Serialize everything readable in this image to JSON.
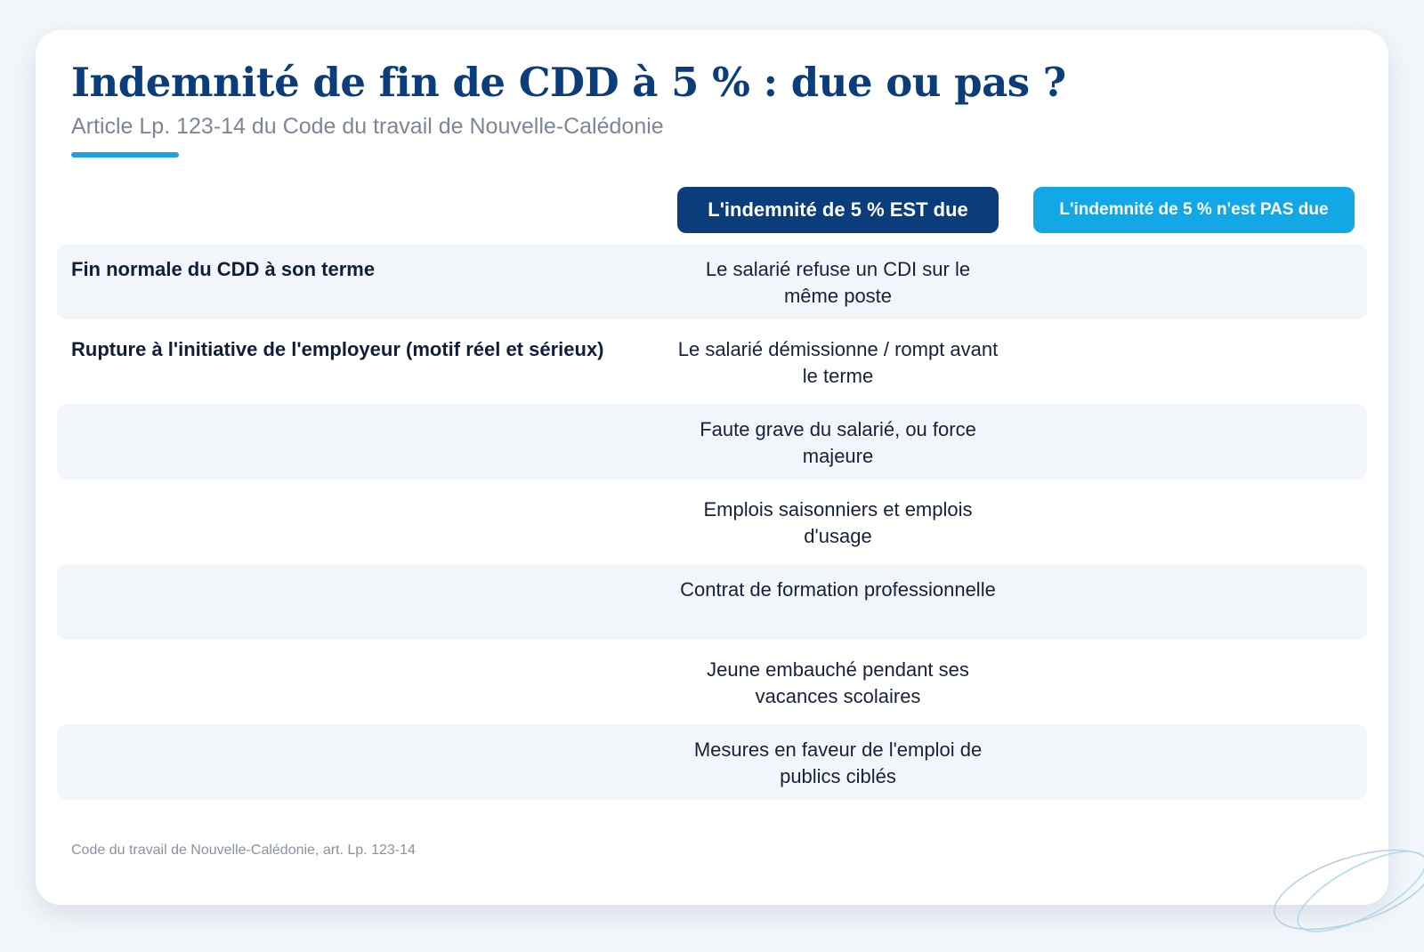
{
  "header": {
    "title": "Indemnité de fin de CDD à 5 % : due ou pas ?",
    "subtitle": "Article Lp. 123-14 du Code du travail de Nouvelle-Calédonie"
  },
  "columns": {
    "due": "L'indemnité de 5 % EST due",
    "not_due": "L'indemnité de 5 % n'est PAS due"
  },
  "rows": [
    {
      "label": "Fin normale du CDD à son terme",
      "cell": "Le salarié refuse un CDI sur le même poste"
    },
    {
      "label": "Rupture à l'initiative de l'employeur (motif réel et sérieux)",
      "cell": "Le salarié démissionne / rompt avant le terme"
    },
    {
      "label": "",
      "cell": "Faute grave du salarié, ou force majeure"
    },
    {
      "label": "",
      "cell": "Emplois saisonniers et emplois d'usage"
    },
    {
      "label": "",
      "cell": "Contrat de formation professionnelle"
    },
    {
      "label": "",
      "cell": "Jeune embauché pendant ses vacances scolaires"
    },
    {
      "label": "",
      "cell": "Mesures en faveur de l'emploi de publics ciblés"
    }
  ],
  "footnote": "Code du travail de Nouvelle-Calédonie, art. Lp. 123-14",
  "colors": {
    "primary": "#0a3d7a",
    "accent": "#12a8e6",
    "row_alt": "#f2f6fa",
    "background": "#f3f7fb"
  }
}
